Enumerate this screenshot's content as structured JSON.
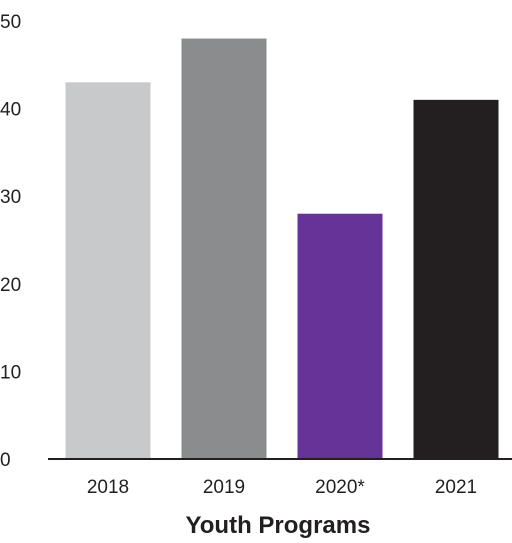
{
  "chart_data": {
    "type": "bar",
    "categories": [
      "2018",
      "2019",
      "2020*",
      "2021"
    ],
    "values": [
      43,
      48,
      28,
      41
    ],
    "colors": [
      "#c8c9ca",
      "#8b8c8e",
      "#663399",
      "#231f20"
    ],
    "title": "",
    "xlabel": "Youth Programs",
    "ylabel": "",
    "ylim": [
      0,
      50
    ],
    "yticks": [
      "0",
      "10",
      "20",
      "30",
      "40",
      "50"
    ],
    "grid": false,
    "legend": "none"
  }
}
